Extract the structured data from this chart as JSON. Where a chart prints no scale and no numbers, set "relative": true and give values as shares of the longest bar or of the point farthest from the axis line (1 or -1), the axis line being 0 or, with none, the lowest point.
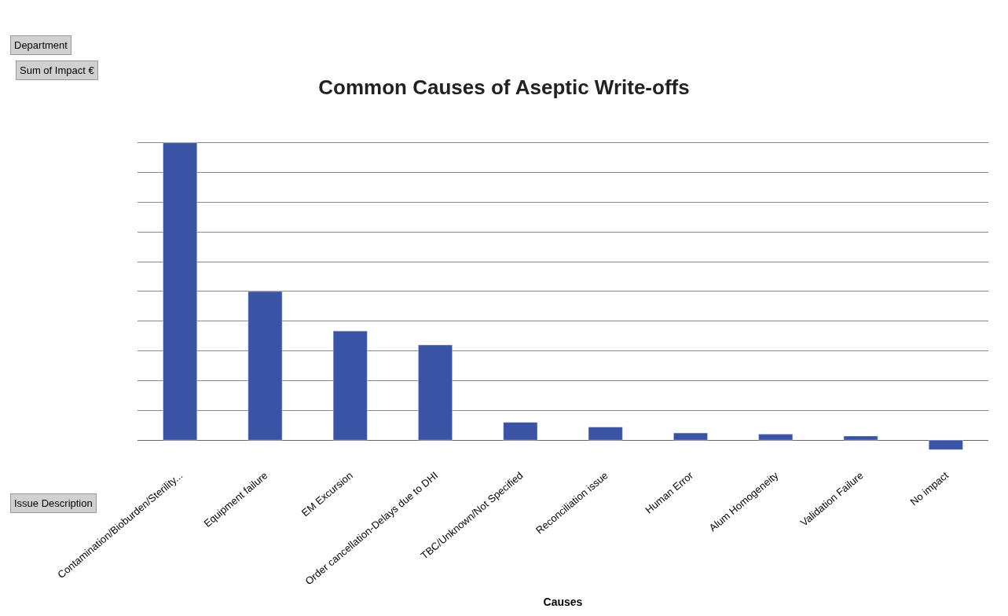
{
  "chart_data": {
    "type": "bar",
    "title": "Common Causes of Aseptic Write-offs",
    "xlabel": "Causes",
    "relative": true,
    "grid": "y",
    "legend": false,
    "color": "#3a53a4",
    "categories": [
      "Contamination/Bioburden/Sterility...",
      "Equipment failure",
      "EM Excursion",
      "Order cancellation-Delays due to DHI",
      "TBC/Unknown/Not Specified",
      "Reconciliation issue",
      "Human Error",
      "Alum Homogeneity",
      "Validation Failure",
      "No impact"
    ],
    "values": [
      1,
      0.5,
      0.367,
      0.32,
      0.06,
      0.044,
      0.024,
      0.02,
      0.014,
      -0.032
    ],
    "annotations": [
      "Department",
      "Sum of Impact €",
      "Issue Description"
    ]
  }
}
